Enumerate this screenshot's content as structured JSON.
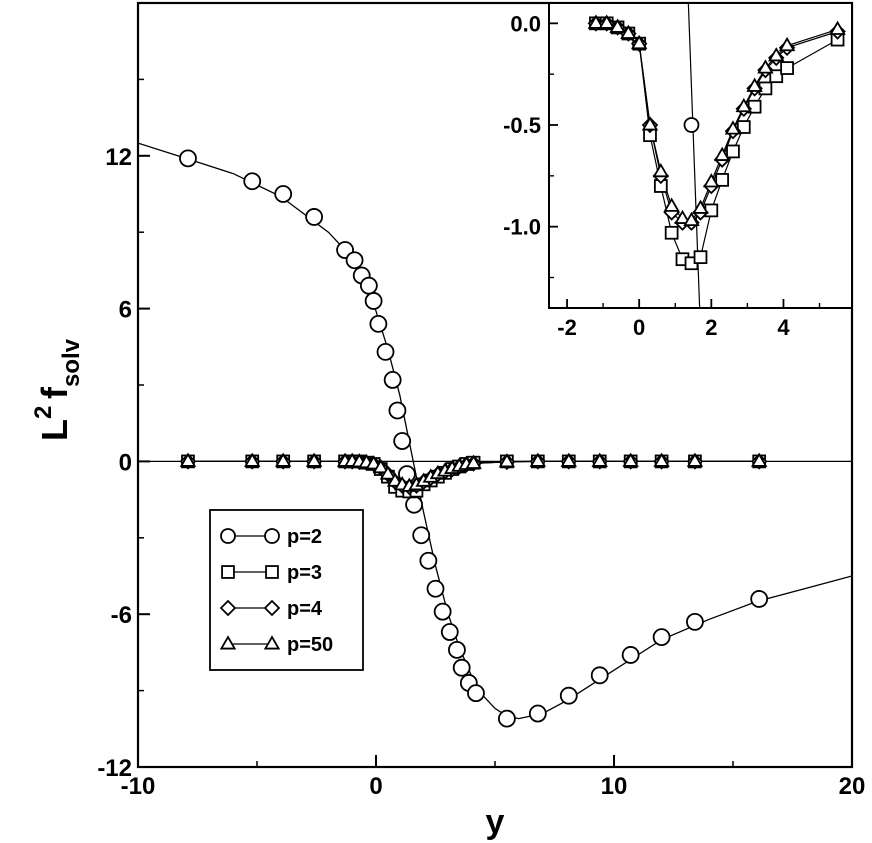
{
  "chart_data": [
    {
      "type": "line",
      "xlabel": "y",
      "ylabel": {
        "base": "L",
        "sup": "2",
        "main": "f",
        "sub": "solv"
      },
      "xlim": [
        -10,
        20
      ],
      "ylim": [
        -12,
        18
      ],
      "xticks": [
        -10,
        0,
        10,
        20
      ],
      "xtick_labels": [
        "-10",
        "0",
        "10",
        "20"
      ],
      "yticks": [
        -12,
        -6,
        0,
        6,
        12
      ],
      "ytick_labels": [
        "-12",
        "-6",
        "0",
        "6",
        "12"
      ],
      "grid": false,
      "legend_position": "lower-left",
      "series": [
        {
          "name": "p=2",
          "marker": "circle",
          "x": [
            -7.9,
            -5.2,
            -3.9,
            -2.6,
            -1.3,
            -0.9,
            -0.6,
            -0.3,
            -0.1,
            0.1,
            0.4,
            0.7,
            0.9,
            1.1,
            1.3,
            1.6,
            1.9,
            2.2,
            2.5,
            2.8,
            3.1,
            3.4,
            3.6,
            3.9,
            4.2,
            5.5,
            6.8,
            8.1,
            9.4,
            10.7,
            12.0,
            13.4,
            16.1
          ],
          "y": [
            11.9,
            11.0,
            10.5,
            9.6,
            8.3,
            7.9,
            7.3,
            6.9,
            6.3,
            5.4,
            4.3,
            3.2,
            2.0,
            0.8,
            -0.5,
            -1.7,
            -2.9,
            -3.9,
            -5.0,
            -5.9,
            -6.7,
            -7.4,
            -8.1,
            -8.7,
            -9.1,
            -10.1,
            -9.9,
            -9.2,
            -8.4,
            -7.6,
            -6.9,
            -6.3,
            -5.4
          ],
          "fit_x": [
            -10,
            -8,
            -6,
            -4,
            -2,
            -1.5,
            -1,
            -0.5,
            0,
            0.5,
            1,
            1.5,
            2,
            2.5,
            3,
            3.5,
            4,
            4.5,
            5,
            5.5,
            6,
            7,
            8,
            10,
            12,
            14,
            16,
            18,
            20
          ],
          "fit_y": [
            12.5,
            11.9,
            11.3,
            10.4,
            9.0,
            8.5,
            7.8,
            7.0,
            5.9,
            4.4,
            2.6,
            0.3,
            -2.0,
            -4.1,
            -5.9,
            -7.3,
            -8.4,
            -9.2,
            -9.7,
            -10.0,
            -10.1,
            -9.9,
            -9.4,
            -8.2,
            -7.0,
            -6.2,
            -5.5,
            -5.0,
            -4.5
          ]
        },
        {
          "name": "p=3",
          "marker": "square",
          "x": [
            -7.9,
            -5.2,
            -3.9,
            -2.6,
            -1.3,
            -1.0,
            -0.7,
            -0.4,
            -0.1,
            0.2,
            0.5,
            0.8,
            1.1,
            1.4,
            1.7,
            2.0,
            2.3,
            2.6,
            2.9,
            3.2,
            3.5,
            3.8,
            4.1,
            5.5,
            6.8,
            8.1,
            9.4,
            10.7,
            12.0,
            13.4,
            16.1
          ],
          "y": [
            0,
            0,
            0,
            0,
            0,
            0,
            0,
            -0.05,
            -0.1,
            -0.3,
            -0.6,
            -1.0,
            -1.15,
            -1.18,
            -1.15,
            -0.9,
            -0.75,
            -0.6,
            -0.45,
            -0.3,
            -0.2,
            -0.1,
            -0.05,
            0,
            0,
            0,
            0,
            0,
            0,
            0,
            0
          ]
        },
        {
          "name": "p=4",
          "marker": "diamond",
          "x": [
            -7.9,
            -5.2,
            -3.9,
            -2.6,
            -1.3,
            -1.0,
            -0.7,
            -0.4,
            -0.1,
            0.2,
            0.5,
            0.8,
            1.1,
            1.4,
            1.7,
            2.0,
            2.3,
            2.6,
            2.9,
            3.2,
            3.5,
            3.8,
            4.1,
            5.5,
            6.8,
            8.1,
            9.4,
            10.7,
            12.0,
            13.4,
            16.1
          ],
          "y": [
            0,
            0,
            0,
            0,
            0,
            0,
            -0.02,
            -0.05,
            -0.1,
            -0.25,
            -0.5,
            -0.8,
            -0.95,
            -1.0,
            -0.95,
            -0.8,
            -0.65,
            -0.5,
            -0.4,
            -0.3,
            -0.2,
            -0.12,
            -0.08,
            -0.02,
            0,
            0,
            0,
            0,
            0,
            0,
            0
          ]
        },
        {
          "name": "p=50",
          "marker": "triangle",
          "x": [
            -7.9,
            -5.2,
            -3.9,
            -2.6,
            -1.3,
            -1.0,
            -0.7,
            -0.4,
            -0.1,
            0.2,
            0.5,
            0.8,
            1.1,
            1.4,
            1.7,
            2.0,
            2.3,
            2.6,
            2.9,
            3.2,
            3.5,
            3.8,
            4.1,
            5.5,
            6.8,
            8.1,
            9.4,
            10.7,
            12.0,
            13.4,
            16.1
          ],
          "y": [
            0,
            0,
            0,
            0,
            0,
            0,
            -0.02,
            -0.05,
            -0.1,
            -0.25,
            -0.5,
            -0.78,
            -0.92,
            -0.98,
            -0.92,
            -0.78,
            -0.62,
            -0.48,
            -0.38,
            -0.28,
            -0.19,
            -0.12,
            -0.08,
            -0.02,
            0,
            0,
            0,
            0,
            0,
            0,
            0
          ]
        }
      ]
    },
    {
      "type": "line",
      "position": "inset top-right",
      "xlim": [
        -2.5,
        5.9
      ],
      "ylim": [
        -1.4,
        0.1
      ],
      "xticks": [
        -2,
        0,
        2,
        4
      ],
      "xtick_labels": [
        "-2",
        "0",
        "2",
        "4"
      ],
      "yticks": [
        0.0,
        -0.5,
        -1.0
      ],
      "ytick_labels": [
        "0.0",
        "-0.5",
        "-1.0"
      ],
      "series": [
        {
          "name": "p=2",
          "marker": "circle",
          "x": [
            1.45
          ],
          "y": [
            -0.5
          ],
          "fit_x": [
            1.36,
            1.68
          ],
          "fit_y": [
            0.12,
            -1.42
          ]
        },
        {
          "name": "p=3",
          "marker": "square",
          "x": [
            -1.2,
            -0.9,
            -0.6,
            -0.3,
            0.0,
            0.3,
            0.6,
            0.9,
            1.2,
            1.45,
            1.7,
            2.0,
            2.3,
            2.6,
            2.9,
            3.2,
            3.5,
            3.8,
            4.1,
            5.5
          ],
          "y": [
            0.0,
            0.0,
            -0.02,
            -0.05,
            -0.1,
            -0.55,
            -0.8,
            -1.03,
            -1.16,
            -1.18,
            -1.15,
            -0.92,
            -0.77,
            -0.63,
            -0.51,
            -0.41,
            -0.32,
            -0.26,
            -0.22,
            -0.08
          ]
        },
        {
          "name": "p=4",
          "marker": "diamond",
          "x": [
            -1.2,
            -0.9,
            -0.6,
            -0.3,
            0.0,
            0.3,
            0.6,
            0.9,
            1.2,
            1.45,
            1.7,
            2.0,
            2.3,
            2.6,
            2.9,
            3.2,
            3.5,
            3.8,
            4.1,
            5.5
          ],
          "y": [
            0.0,
            0.0,
            -0.02,
            -0.05,
            -0.1,
            -0.5,
            -0.75,
            -0.93,
            -0.98,
            -0.98,
            -0.93,
            -0.8,
            -0.67,
            -0.53,
            -0.42,
            -0.32,
            -0.23,
            -0.17,
            -0.12,
            -0.04
          ]
        },
        {
          "name": "p=50",
          "marker": "triangle",
          "x": [
            -1.2,
            -0.9,
            -0.6,
            -0.3,
            0.0,
            0.3,
            0.6,
            0.9,
            1.2,
            1.45,
            1.7,
            2.0,
            2.3,
            2.6,
            2.9,
            3.2,
            3.5,
            3.8,
            4.1,
            5.5
          ],
          "y": [
            0.0,
            0.0,
            -0.02,
            -0.05,
            -0.1,
            -0.5,
            -0.73,
            -0.9,
            -0.96,
            -0.97,
            -0.91,
            -0.78,
            -0.65,
            -0.52,
            -0.41,
            -0.31,
            -0.22,
            -0.16,
            -0.11,
            -0.03
          ]
        }
      ]
    }
  ]
}
